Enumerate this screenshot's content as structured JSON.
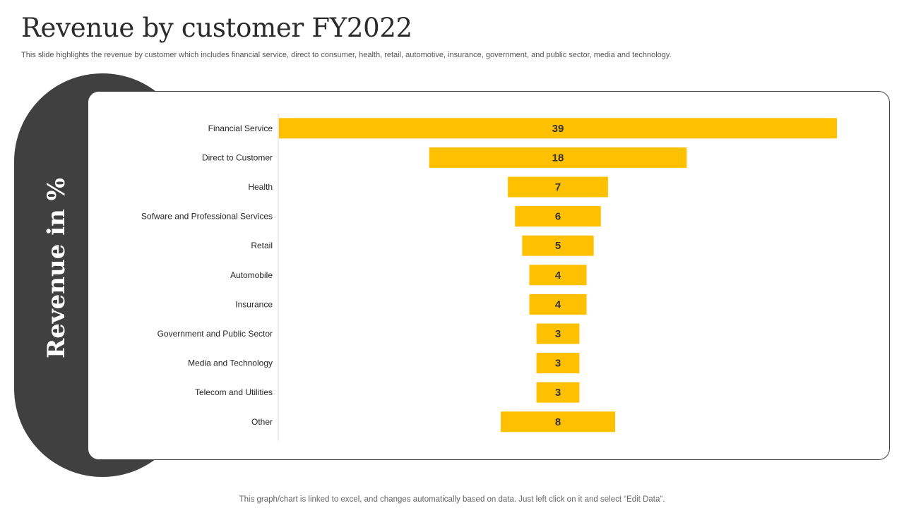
{
  "slide": {
    "title": "Revenue by customer FY2022",
    "subtitle": "This slide highlights the revenue by customer which includes financial service, direct to consumer, health, retail, automotive, insurance, government, and public sector, media and technology.",
    "side_label": "Revenue in %",
    "footer": "This graph/chart is linked to excel,  and changes automatically based on data. Just left click on it and select “Edit Data”."
  },
  "colors": {
    "bar": "#FFC000",
    "panel": "#404040",
    "text": "#262626",
    "axis": "#D9D9D9"
  },
  "chart_data": {
    "type": "bar",
    "orientation": "horizontal",
    "style": "funnel (bars centered)",
    "categories": [
      "Financial Service",
      "Direct to Customer",
      "Health",
      "Sofware and Professional Services",
      "Retail",
      "Automobile",
      "Insurance",
      "Government and Public Sector",
      "Media and Technology",
      "Telecom and Utilities",
      "Other"
    ],
    "values": [
      39,
      18,
      7,
      6,
      5,
      4,
      4,
      3,
      3,
      3,
      8
    ],
    "data_labels": true,
    "ylabel": "Revenue in %",
    "grid": false,
    "legend": "none"
  }
}
